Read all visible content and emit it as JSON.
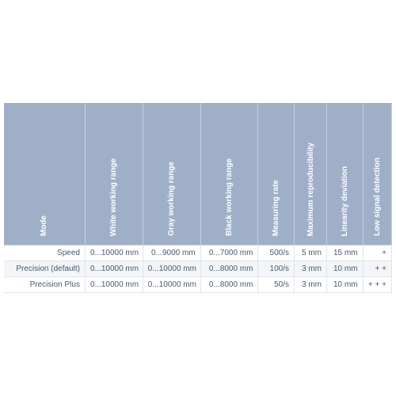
{
  "table": {
    "headers": [
      "Mode",
      "White working range",
      "Gray working range",
      "Black working range",
      "Measuring rate",
      "Maximum reproducibility",
      "Linearity deviation",
      "Low signal detection"
    ],
    "rows": [
      {
        "label": "Speed",
        "white": "0...10000 mm",
        "gray": "0...9000 mm",
        "black": "0...7000 mm",
        "rate": "500/s",
        "repro": "5 mm",
        "lin": "15 mm",
        "low": "+"
      },
      {
        "label": "Precision (default)",
        "white": "0...10000 mm",
        "gray": "0...10000 mm",
        "black": "0...8000 mm",
        "rate": "100/s",
        "repro": "3 mm",
        "lin": "10 mm",
        "low": "+ +"
      },
      {
        "label": "Precision Plus",
        "white": "0...10000 mm",
        "gray": "0...10000 mm",
        "black": "0...8000 mm",
        "rate": "50/s",
        "repro": "3 mm",
        "lin": "10 mm",
        "low": "+ + +"
      }
    ]
  },
  "colors": {
    "header_bg": "#9fafc8",
    "header_text": "#ffffff",
    "row_even_bg": "#f3f5f8",
    "row_odd_bg": "#ffffff",
    "cell_text": "#4a5a6a",
    "border": "#dfe3ea"
  }
}
